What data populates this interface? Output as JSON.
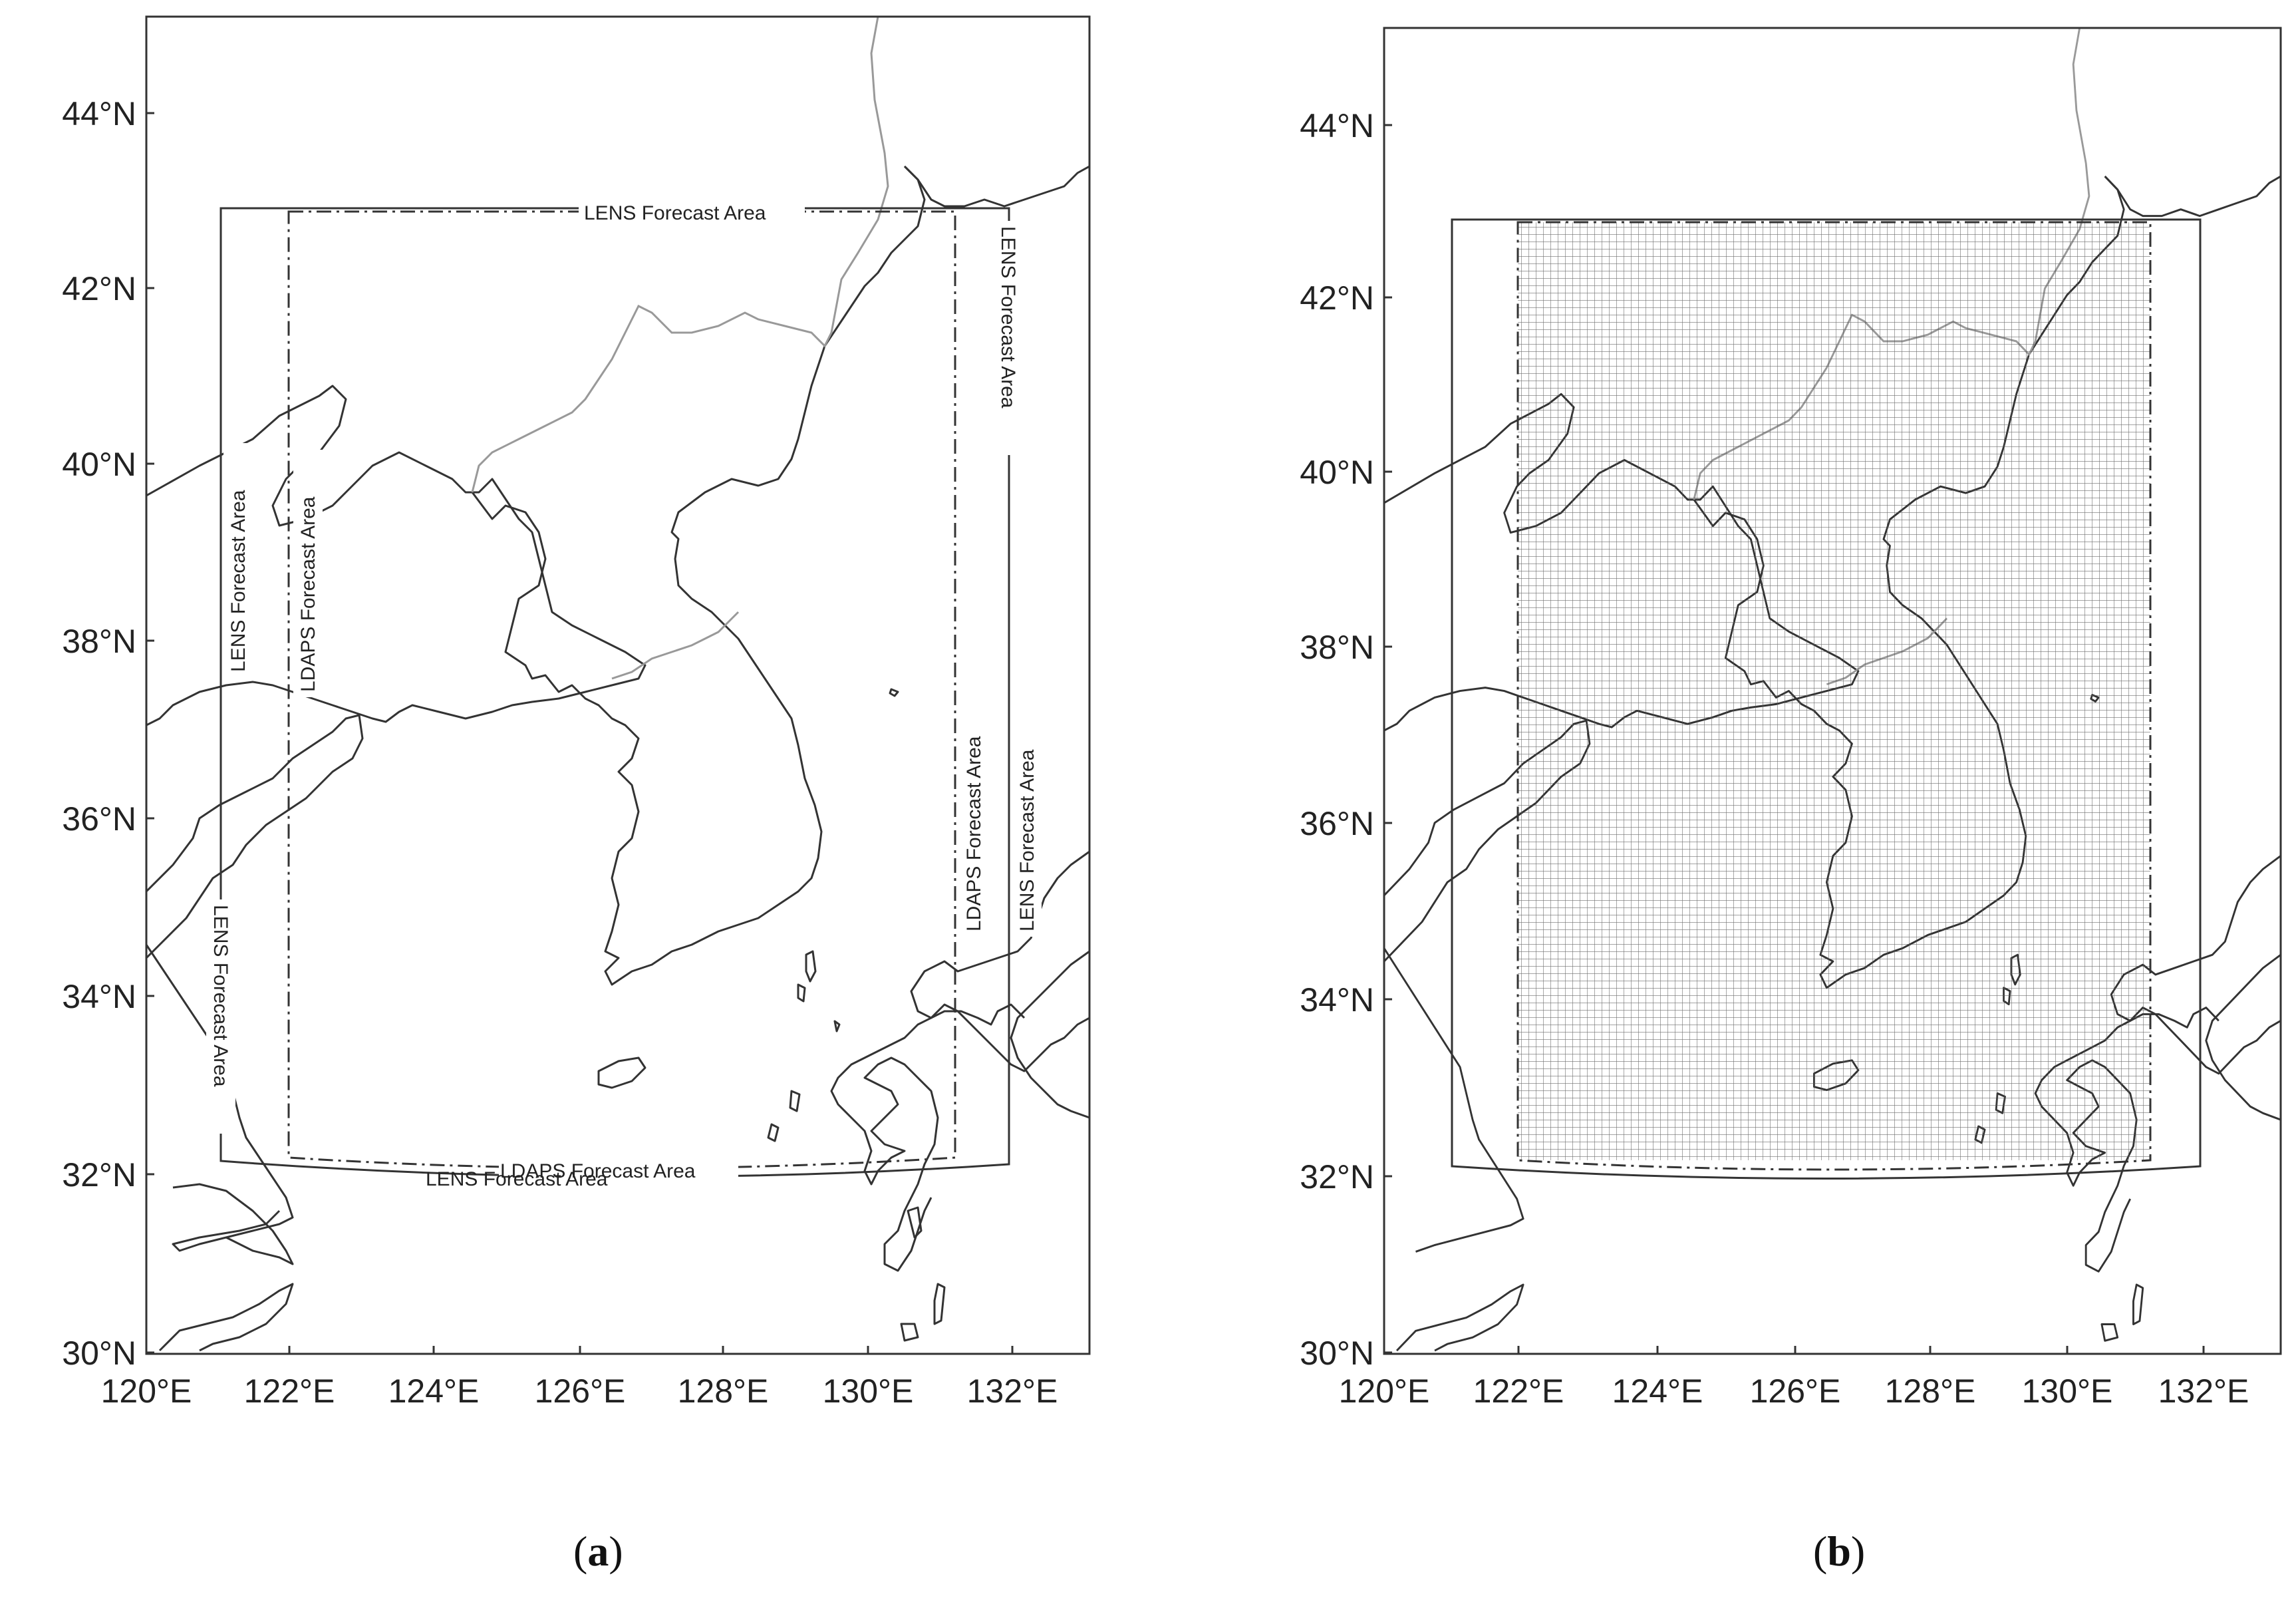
{
  "map": {
    "extent": {
      "lon_min": 120,
      "lon_max": 133,
      "lat_min": 30,
      "lat_max": 45
    },
    "lat_ticks": [
      "44°N",
      "42°N",
      "40°N",
      "38°N",
      "36°N",
      "34°N",
      "32°N",
      "30°N"
    ],
    "lon_ticks": [
      "120°E",
      "122°E",
      "124°E",
      "126°E",
      "128°E",
      "130°E",
      "132°E"
    ]
  },
  "panels": [
    {
      "caption_open": "(",
      "caption_letter": "a",
      "caption_close": ")",
      "labels": {
        "lens_top": "LENS Forecast Area",
        "lens_left_upper": "LENS Forecast Area",
        "lens_left_lower": "LENS Forecast Area",
        "lens_right_upper": "LENS Forecast Area",
        "lens_right_lower": "LENS Forecast Area",
        "lens_bottom": "LENS Forecast Area",
        "ldaps_left": "LDAPS Forecast Area",
        "ldaps_right": "LDAPS Forecast Area",
        "ldaps_bottom": "LDAPS Forecast Area"
      }
    },
    {
      "caption_open": "(",
      "caption_letter": "b",
      "caption_close": ")"
    }
  ],
  "domains": {
    "lens": {
      "lon_min": 121,
      "lon_max": 132,
      "lat_min": 32.1,
      "lat_max": 42.9
    },
    "ldaps": {
      "lon_min": 122,
      "lon_max": 131.2,
      "lat_min": 32.15,
      "lat_max": 42.85
    }
  }
}
